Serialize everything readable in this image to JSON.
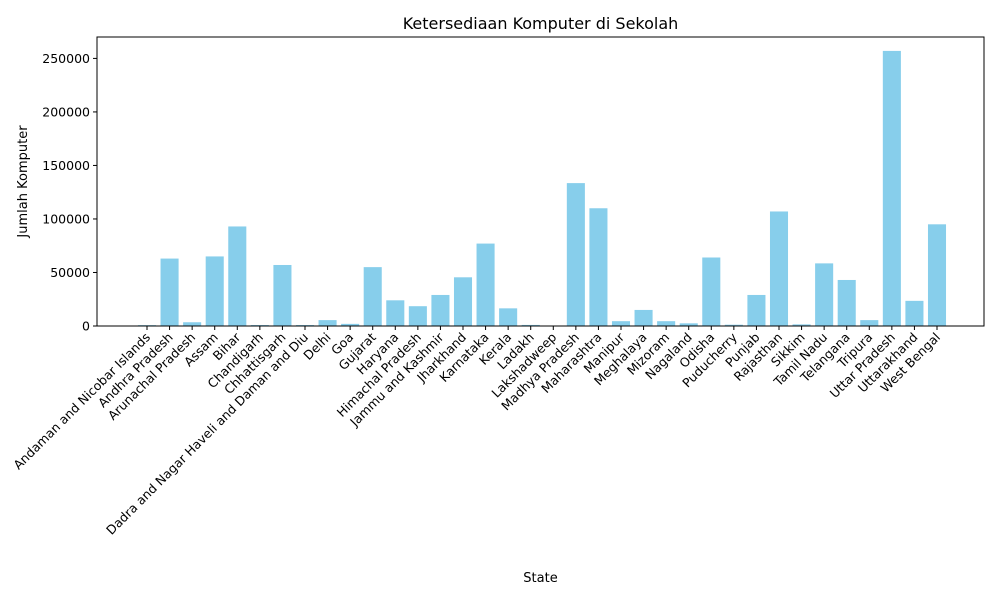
{
  "chart_data": {
    "type": "bar",
    "title": "Ketersediaan Komputer di Sekolah",
    "xlabel": "State",
    "ylabel": "Jumlah Komputer",
    "ylim": [
      0,
      270000
    ],
    "yticks": [
      0,
      50000,
      100000,
      150000,
      200000,
      250000
    ],
    "grid": false,
    "bar_color": "#87ceeb",
    "categories": [
      "Andaman and Nicobar Islands",
      "Andhra Pradesh",
      "Arunachal Pradesh",
      "Assam",
      "Bihar",
      "Chandigarh",
      "Chhattisgarh",
      "Dadra and Nagar Haveli and Daman and Diu",
      "Delhi",
      "Goa",
      "Gujarat",
      "Haryana",
      "Himachal Pradesh",
      "Jammu and Kashmir",
      "Jharkhand",
      "Karnataka",
      "Kerala",
      "Ladakh",
      "Lakshadweep",
      "Madhya Pradesh",
      "Maharashtra",
      "Manipur",
      "Meghalaya",
      "Mizoram",
      "Nagaland",
      "Odisha",
      "Puducherry",
      "Punjab",
      "Rajasthan",
      "Sikkim",
      "Tamil Nadu",
      "Telangana",
      "Tripura",
      "Uttar Pradesh",
      "Uttarakhand",
      "West Bengal"
    ],
    "values": [
      800,
      63000,
      3500,
      65000,
      93000,
      900,
      57000,
      900,
      5500,
      2000,
      55000,
      24000,
      18500,
      29000,
      45500,
      77000,
      16500,
      1000,
      200,
      133500,
      110000,
      4500,
      15000,
      4500,
      2500,
      64000,
      1200,
      29000,
      107000,
      1500,
      58500,
      43000,
      5500,
      257000,
      23500,
      95000
    ]
  }
}
